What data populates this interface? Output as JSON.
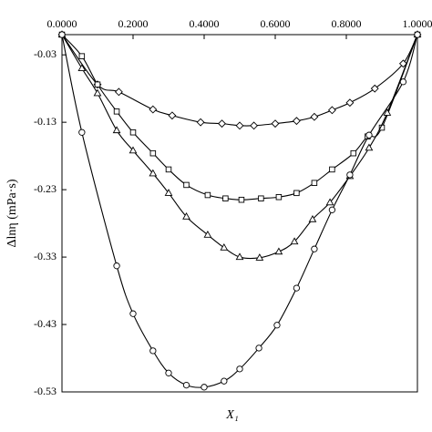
{
  "chart_data": {
    "type": "line",
    "x_label": "X₁",
    "y_label": "Δlnη (mPa·s)",
    "xlim": [
      0,
      1
    ],
    "xticks": [
      {
        "value": 0,
        "label": "0.0000"
      },
      {
        "value": 0.2,
        "label": "0.2000"
      },
      {
        "value": 0.4,
        "label": "0.4000"
      },
      {
        "value": 0.6,
        "label": "0.6000"
      },
      {
        "value": 0.8,
        "label": "0.8000"
      },
      {
        "value": 1,
        "label": "1.0000"
      }
    ],
    "ylim": [
      -0.53,
      0
    ],
    "yticks": [
      -0.03,
      -0.13,
      -0.23,
      -0.33,
      -0.43,
      -0.53
    ],
    "series": [
      {
        "marker": "diamond",
        "color": "#000000",
        "x": [
          0,
          0.1,
          0.16,
          0.256,
          0.31,
          0.39,
          0.45,
          0.5,
          0.54,
          0.6,
          0.66,
          0.71,
          0.76,
          0.81,
          0.88,
          0.96,
          1
        ],
        "values": [
          0,
          -0.074,
          -0.085,
          -0.111,
          -0.12,
          -0.13,
          -0.132,
          -0.135,
          -0.135,
          -0.132,
          -0.128,
          -0.122,
          -0.112,
          -0.101,
          -0.08,
          -0.043,
          0
        ]
      },
      {
        "marker": "square",
        "color": "#000000",
        "x": [
          0,
          0.056,
          0.1,
          0.154,
          0.2,
          0.256,
          0.3,
          0.35,
          0.41,
          0.46,
          0.505,
          0.56,
          0.61,
          0.66,
          0.71,
          0.76,
          0.82,
          0.86,
          0.9,
          1
        ],
        "values": [
          0,
          -0.032,
          -0.074,
          -0.114,
          -0.145,
          -0.176,
          -0.2,
          -0.223,
          -0.238,
          -0.243,
          -0.245,
          -0.243,
          -0.241,
          -0.235,
          -0.22,
          -0.2,
          -0.176,
          -0.151,
          -0.138,
          0
        ]
      },
      {
        "marker": "triangle",
        "color": "#000000",
        "x": [
          0,
          0.056,
          0.1,
          0.154,
          0.2,
          0.256,
          0.3,
          0.35,
          0.41,
          0.456,
          0.5,
          0.556,
          0.61,
          0.654,
          0.705,
          0.754,
          0.81,
          0.864,
          0.915,
          1
        ],
        "values": [
          0,
          -0.05,
          -0.087,
          -0.142,
          -0.172,
          -0.206,
          -0.235,
          -0.27,
          -0.297,
          -0.316,
          -0.33,
          -0.331,
          -0.322,
          -0.307,
          -0.274,
          -0.249,
          -0.21,
          -0.168,
          -0.116,
          0
        ]
      },
      {
        "marker": "circle",
        "color": "#000000",
        "x": [
          0,
          0.056,
          0.154,
          0.2,
          0.256,
          0.3,
          0.35,
          0.4,
          0.456,
          0.5,
          0.554,
          0.605,
          0.66,
          0.71,
          0.76,
          0.81,
          0.864,
          0.96,
          1
        ],
        "values": [
          0,
          -0.145,
          -0.343,
          -0.414,
          -0.469,
          -0.502,
          -0.52,
          -0.523,
          -0.514,
          -0.496,
          -0.465,
          -0.431,
          -0.376,
          -0.318,
          -0.26,
          -0.208,
          -0.149,
          -0.07,
          0
        ]
      }
    ]
  }
}
